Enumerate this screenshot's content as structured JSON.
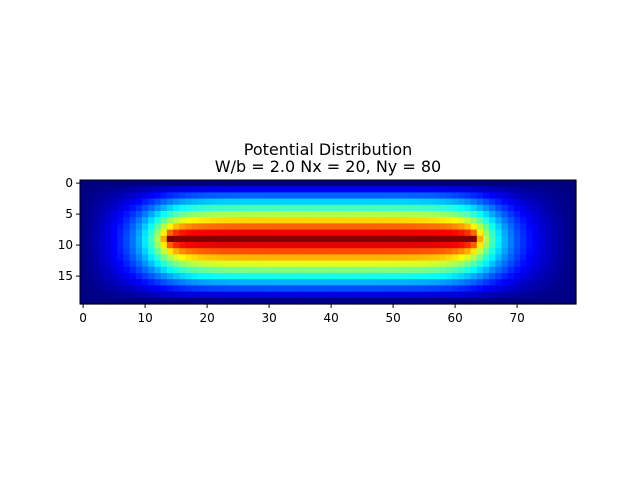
{
  "chart_data": {
    "type": "heatmap",
    "title": "Potential Distribution",
    "subtitle": "W/b = 2.0 Nx = 20, Ny = 80",
    "xlabel": "",
    "ylabel": "",
    "colormap": "jet",
    "grid": false,
    "rows": 20,
    "cols": 80,
    "xlim": [
      -0.5,
      79.5
    ],
    "ylim": [
      19.5,
      -0.5
    ],
    "x_ticks": [
      0,
      10,
      20,
      30,
      40,
      50,
      60,
      70
    ],
    "y_ticks": [
      0,
      5,
      10,
      15
    ],
    "source": {
      "description": "potential peaks at 1.0 along conductor at row 9, columns 14-63, decaying to 0 at boundary",
      "conductor_row": 9,
      "conductor_cols": [
        14,
        63
      ],
      "peak_value": 1.0,
      "boundary_value": 0.0
    }
  }
}
